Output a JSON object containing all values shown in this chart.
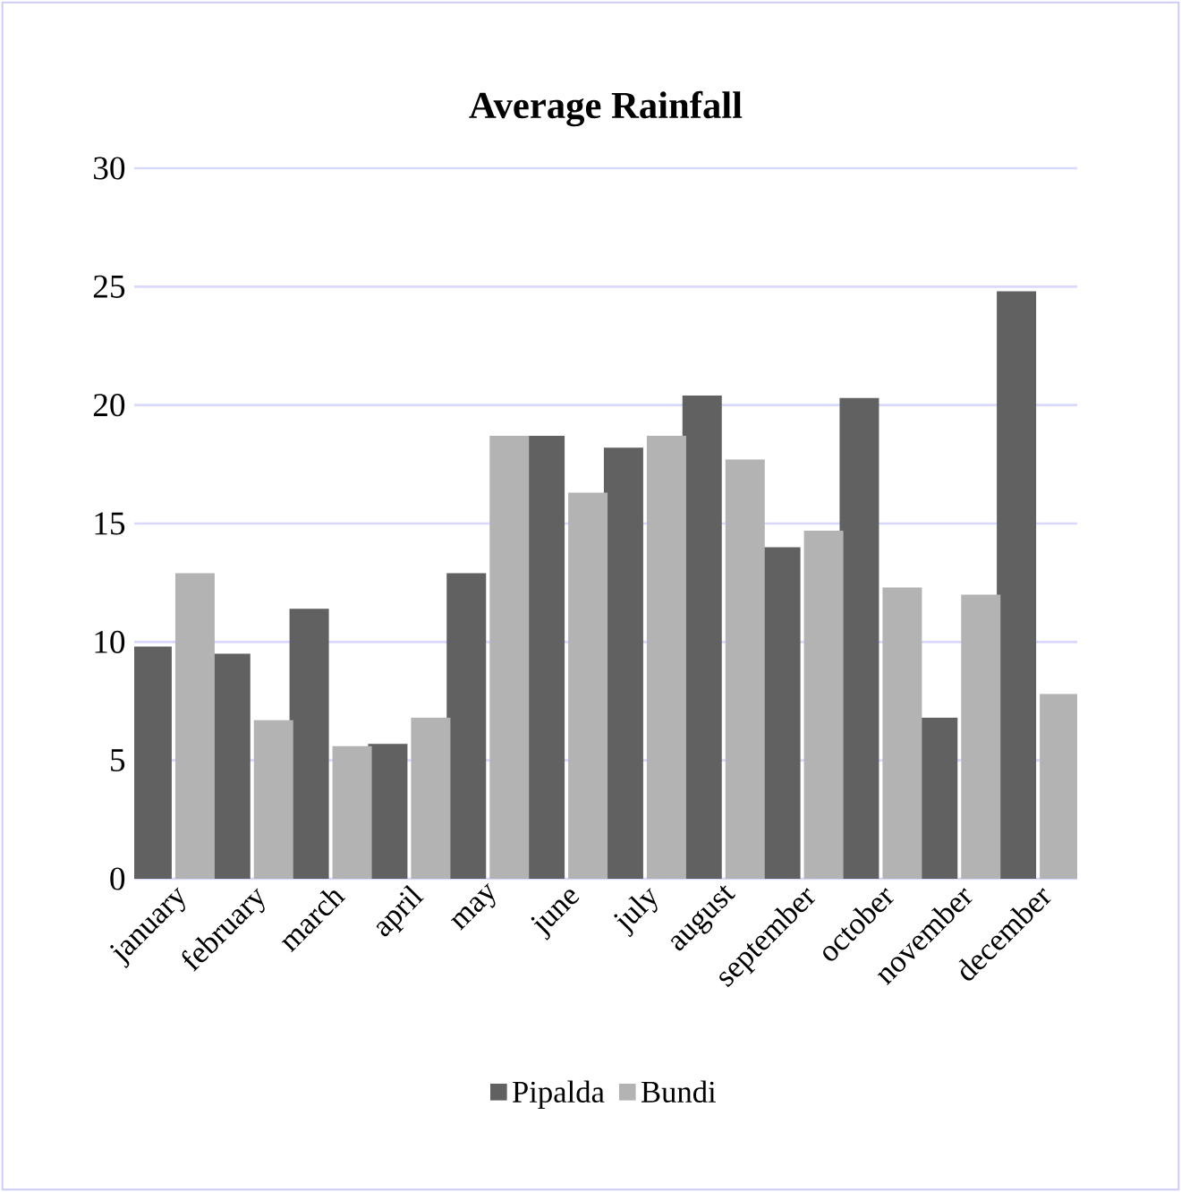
{
  "chart_data": {
    "type": "bar",
    "title": "Average Rainfall",
    "categories": [
      "january",
      "february",
      "march",
      "april",
      "may",
      "june",
      "july",
      "august",
      "september",
      "october",
      "november",
      "december"
    ],
    "series": [
      {
        "name": "Pipalda",
        "color": "#616161",
        "values": [
          9.8,
          9.5,
          11.4,
          5.7,
          12.9,
          18.7,
          18.2,
          20.4,
          14.0,
          20.3,
          6.8,
          24.8
        ]
      },
      {
        "name": "Bundi",
        "color": "#b3b3b3",
        "values": [
          12.9,
          6.7,
          5.6,
          6.8,
          18.7,
          16.3,
          18.7,
          17.7,
          14.7,
          12.3,
          12.0,
          7.8
        ]
      }
    ],
    "ylim": [
      0,
      30
    ],
    "yticks": [
      0,
      5,
      10,
      15,
      20,
      25,
      30
    ],
    "grid": "y",
    "legend": "bottom"
  }
}
